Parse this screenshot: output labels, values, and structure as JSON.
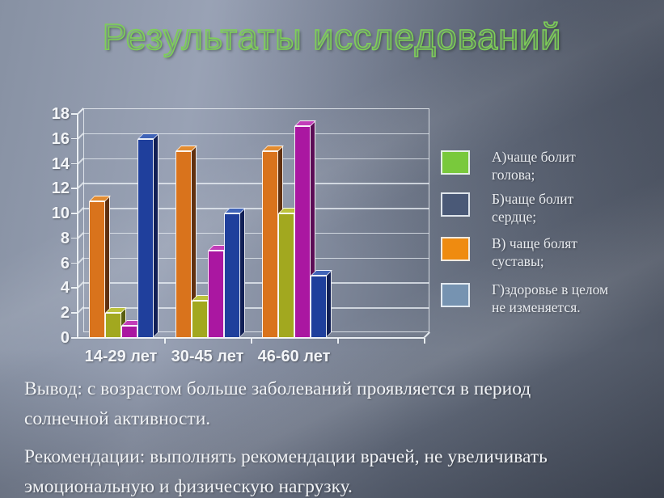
{
  "title": "Результаты исследований",
  "chart_data": {
    "type": "bar",
    "categories": [
      "14-29 лет",
      "30-45 лет",
      "46-60 лет"
    ],
    "series": [
      {
        "name": "В) чаще болят суставы",
        "legend_key": "В",
        "values": [
          11,
          15,
          15
        ],
        "colors": {
          "front": "#d9731c",
          "top": "#e28c31",
          "side": "#60300f"
        }
      },
      {
        "name": "А) чаще болит голова",
        "legend_key": "А",
        "values": [
          2,
          3,
          10
        ],
        "colors": {
          "front": "#a2a81f",
          "top": "#bcc23c",
          "side": "#585e0f"
        }
      },
      {
        "name": "Б) чаще болит сердце",
        "legend_key": "Б",
        "values": [
          1,
          7,
          17
        ],
        "colors": {
          "front": "#aa17a1",
          "top": "#c23db9",
          "side": "#5b0c55"
        }
      },
      {
        "name": "Г) здоровье в целом не изменяется",
        "legend_key": "Г",
        "values": [
          16,
          10,
          5
        ],
        "colors": {
          "front": "#1f3f9c",
          "top": "#4064b8",
          "side": "#111f55"
        }
      }
    ],
    "title": "",
    "xlabel": "",
    "ylabel": "",
    "ylim": [
      0,
      18
    ],
    "y_step": 2,
    "y_ticks": [
      "0",
      "2",
      "4",
      "6",
      "8",
      "10",
      "12",
      "14",
      "16",
      "18"
    ],
    "grid": true,
    "legend_position": "right",
    "empty_fourth_slot": true
  },
  "legend": {
    "items": [
      {
        "swatch_color": "#79c93c",
        "lines": [
          "А)чаще болит",
          "голова;"
        ]
      },
      {
        "swatch_color": "#4a5977",
        "lines": [
          "Б)чаще болит",
          "сердце;"
        ]
      },
      {
        "swatch_color": "#ef8b10",
        "lines": [
          "В) чаще болят",
          "суставы;"
        ]
      },
      {
        "swatch_color": "#7693b1",
        "lines": [
          "Г)здоровье в целом",
          "не изменяется."
        ]
      }
    ]
  },
  "conclusion": {
    "lines": [
      "Вывод: с возрастом больше заболеваний проявляется в период",
      "солнечной активности."
    ]
  },
  "recommendation": {
    "lines": [
      "Рекомендации: выполнять рекомендации врачей, не увеличивать",
      "эмоциональную и физическую  нагрузку."
    ]
  },
  "colors": {
    "title_green": "#7ecf58",
    "grid": "#ebf0f6",
    "text_white": "#f1f3f6",
    "bar_outline": "#ffffff"
  }
}
